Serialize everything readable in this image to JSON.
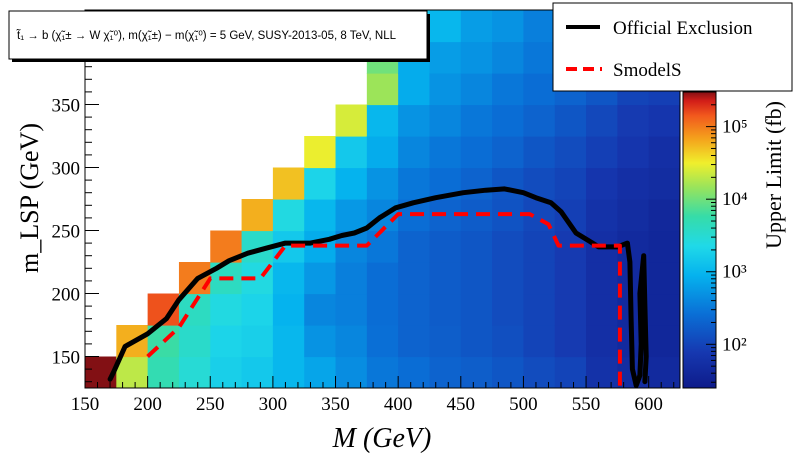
{
  "chart_data": {
    "type": "heatmap",
    "title": "t̃₁ → b (χ̃₁± → W χ̃₁⁰), m(χ̃₁±) − m(χ̃₁⁰) = 5 GeV, SUSY-2013-05, 8 TeV, NLL",
    "xlabel": "M (GeV)",
    "ylabel": "m_LSP (GeV)",
    "colorbar_label": "Upper Limit (fb)",
    "xlim": [
      150,
      625
    ],
    "ylim": [
      125,
      425
    ],
    "x_ticks": [
      150,
      200,
      250,
      300,
      350,
      400,
      450,
      500,
      550,
      600
    ],
    "y_ticks": [
      150,
      200,
      250,
      300,
      350,
      400
    ],
    "colorbar_ticks": [
      {
        "value": 100,
        "label": "10²"
      },
      {
        "value": 1000,
        "label": "10³"
      },
      {
        "value": 10000,
        "label": "10⁴"
      },
      {
        "value": 100000,
        "label": "10⁵"
      }
    ],
    "colorbar_range": [
      25,
      300000
    ],
    "colorbar_scale": "log",
    "cell_size": [
      25,
      25
    ],
    "columns": [
      {
        "x": 162.5,
        "y_start": 137.5,
        "values": [
          300000
        ]
      },
      {
        "x": 187.5,
        "y_start": 137.5,
        "values": [
          20000,
          60000
        ]
      },
      {
        "x": 212.5,
        "y_start": 137.5,
        "values": [
          5000,
          6000,
          150000
        ]
      },
      {
        "x": 237.5,
        "y_start": 137.5,
        "values": [
          3000,
          3500,
          4000,
          100000
        ]
      },
      {
        "x": 262.5,
        "y_start": 137.5,
        "values": [
          1800,
          2000,
          2500,
          4000,
          100000
        ]
      },
      {
        "x": 287.5,
        "y_start": 137.5,
        "values": [
          1500,
          1800,
          2000,
          2500,
          3500,
          60000
        ]
      },
      {
        "x": 312.5,
        "y_start": 137.5,
        "values": [
          1000,
          1000,
          900,
          1000,
          1500,
          2500,
          50000
        ]
      },
      {
        "x": 337.5,
        "y_start": 137.5,
        "values": [
          700,
          500,
          400,
          550,
          800,
          1000,
          2000,
          30000
        ]
      },
      {
        "x": 362.5,
        "y_start": 137.5,
        "values": [
          450,
          400,
          350,
          350,
          400,
          550,
          900,
          1500,
          25000
        ]
      },
      {
        "x": 387.5,
        "y_start": 137.5,
        "values": [
          300,
          260,
          250,
          250,
          300,
          400,
          500,
          800,
          1000,
          15000,
          10000,
          12000
        ]
      },
      {
        "x": 412.5,
        "y_start": 137.5,
        "values": [
          250,
          200,
          200,
          200,
          200,
          250,
          300,
          400,
          500,
          800,
          800,
          1500,
          4000
        ]
      },
      {
        "x": 437.5,
        "y_start": 137.5,
        "values": [
          200,
          180,
          170,
          170,
          170,
          200,
          250,
          300,
          400,
          500,
          600,
          1000,
          1500,
          3000
        ]
      },
      {
        "x": 462.5,
        "y_start": 137.5,
        "values": [
          180,
          150,
          150,
          150,
          150,
          170,
          200,
          250,
          300,
          400,
          500,
          600,
          1000,
          2000
        ]
      },
      {
        "x": 487.5,
        "y_start": 137.5,
        "values": [
          150,
          130,
          120,
          120,
          120,
          140,
          150,
          200,
          250,
          300,
          400,
          500,
          700,
          1500
        ]
      },
      {
        "x": 512.5,
        "y_start": 137.5,
        "values": [
          120,
          100,
          100,
          100,
          100,
          110,
          120,
          150,
          200,
          250,
          300,
          350,
          400,
          800
        ]
      },
      {
        "x": 537.5,
        "y_start": 137.5,
        "values": [
          100,
          80,
          80,
          80,
          80,
          90,
          100,
          120,
          150,
          200,
          250,
          300,
          400,
          500
        ]
      },
      {
        "x": 562.5,
        "y_start": 137.5,
        "values": [
          60,
          55,
          55,
          55,
          55,
          60,
          70,
          90,
          110,
          150,
          200,
          250,
          300,
          400
        ]
      },
      {
        "x": 587.5,
        "y_start": 137.5,
        "values": [
          50,
          45,
          45,
          45,
          45,
          50,
          55,
          70,
          80,
          100,
          150,
          200,
          250,
          300
        ]
      },
      {
        "x": 612.5,
        "y_start": 137.5,
        "values": [
          45,
          40,
          40,
          40,
          40,
          42,
          50,
          55,
          70,
          90,
          120,
          150,
          200,
          250
        ]
      }
    ],
    "series": [
      {
        "name": "Official Exclusion",
        "color": "#000000",
        "style": "solid",
        "points": [
          [
            170,
            132
          ],
          [
            173,
            138
          ],
          [
            182,
            158
          ],
          [
            200,
            168
          ],
          [
            215,
            180
          ],
          [
            225,
            195
          ],
          [
            240,
            212
          ],
          [
            255,
            220
          ],
          [
            265,
            226
          ],
          [
            280,
            232
          ],
          [
            295,
            236
          ],
          [
            310,
            240
          ],
          [
            330,
            240
          ],
          [
            345,
            243
          ],
          [
            355,
            246
          ],
          [
            365,
            248
          ],
          [
            375,
            252
          ],
          [
            385,
            260
          ],
          [
            398,
            268
          ],
          [
            412,
            272
          ],
          [
            430,
            276
          ],
          [
            452,
            280
          ],
          [
            470,
            282
          ],
          [
            485,
            283
          ],
          [
            500,
            280
          ],
          [
            510,
            276
          ],
          [
            522,
            272
          ],
          [
            530,
            265
          ],
          [
            542,
            248
          ],
          [
            552,
            242
          ],
          [
            560,
            237
          ],
          [
            575,
            237
          ],
          [
            583,
            240
          ],
          [
            585,
            225
          ],
          [
            586,
            180
          ],
          [
            587,
            140
          ],
          [
            590,
            127
          ],
          [
            593,
            135
          ],
          [
            594,
            160
          ],
          [
            593,
            200
          ],
          [
            596,
            230
          ],
          [
            597,
            190
          ],
          [
            598,
            150
          ],
          [
            597,
            130
          ]
        ]
      },
      {
        "name": "SmodelS",
        "color": "#ff0000",
        "style": "dashed",
        "points": [
          [
            200,
            150
          ],
          [
            225,
            173
          ],
          [
            250,
            212
          ],
          [
            290,
            212
          ],
          [
            310,
            238
          ],
          [
            375,
            238
          ],
          [
            400,
            263
          ],
          [
            505,
            263
          ],
          [
            520,
            255
          ],
          [
            528,
            238
          ],
          [
            577,
            238
          ],
          [
            577,
            125
          ]
        ]
      }
    ],
    "legend": {
      "placement": "top-right"
    }
  }
}
